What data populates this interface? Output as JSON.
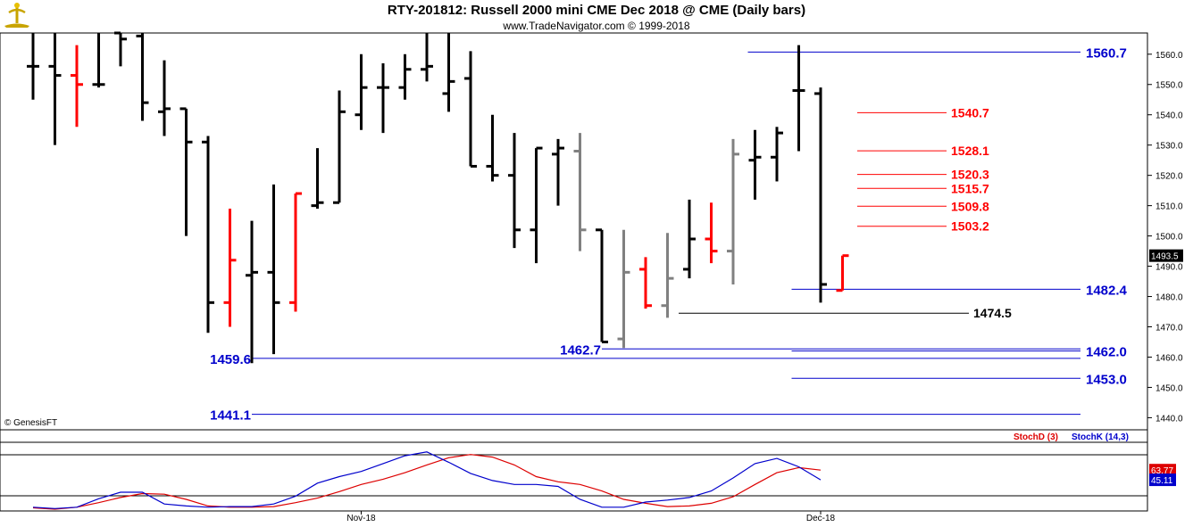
{
  "header": {
    "title": "RTY-201812:  Russell 2000 mini CME Dec 2018 @ CME  (Daily bars)",
    "subtitle": "www.TradeNavigator.com © 1999-2018",
    "copyright": "© GenesisFT"
  },
  "colors": {
    "up": "#ff0000",
    "down": "#000000",
    "neutral": "#808080",
    "level_blue": "#0000cc",
    "level_red": "#ff0000",
    "stoch_d": "#dd0000",
    "stoch_k": "#0000cc"
  },
  "chart_data": [
    {
      "type": "ohlc",
      "title": "RTY-201812:  Russell 2000 mini CME Dec 2018 @ CME  (Daily bars)",
      "ylim": [
        1436,
        1567
      ],
      "yticks": [
        "1440.0",
        "1450.0",
        "1460.0",
        "1470.0",
        "1480.0",
        "1490.0",
        "1500.0",
        "1510.0",
        "1520.0",
        "1530.0",
        "1540.0",
        "1550.0",
        "1560.0"
      ],
      "last_price_label": "1493.5",
      "last_price": 1493.5,
      "bars": [
        {
          "h": 1567,
          "l": 1545,
          "o": 1556,
          "c": 1556,
          "color": "down"
        },
        {
          "h": 1567,
          "l": 1530,
          "o": 1556,
          "c": 1553,
          "color": "down"
        },
        {
          "h": 1563,
          "l": 1536,
          "o": 1553,
          "c": 1550,
          "color": "up"
        },
        {
          "h": 1567,
          "l": 1549,
          "o": 1550,
          "c": 1550,
          "color": "down"
        },
        {
          "h": 1567,
          "l": 1556,
          "o": 1567,
          "c": 1565,
          "color": "down"
        },
        {
          "h": 1567,
          "l": 1538,
          "o": 1566,
          "c": 1544,
          "color": "down"
        },
        {
          "h": 1558,
          "l": 1533,
          "o": 1541,
          "c": 1542,
          "color": "down"
        },
        {
          "h": 1542,
          "l": 1500,
          "o": 1542,
          "c": 1531,
          "color": "down"
        },
        {
          "h": 1533,
          "l": 1468,
          "o": 1531,
          "c": 1478,
          "color": "down"
        },
        {
          "h": 1509,
          "l": 1470,
          "o": 1478,
          "c": 1492,
          "color": "up"
        },
        {
          "h": 1505,
          "l": 1458,
          "o": 1487,
          "c": 1488,
          "color": "down"
        },
        {
          "h": 1517,
          "l": 1461,
          "o": 1488,
          "c": 1478,
          "color": "down"
        },
        {
          "h": 1514,
          "l": 1475,
          "o": 1478,
          "c": 1514,
          "color": "up"
        },
        {
          "h": 1529,
          "l": 1509,
          "o": 1510,
          "c": 1511,
          "color": "down"
        },
        {
          "h": 1548,
          "l": 1511,
          "o": 1511,
          "c": 1541,
          "color": "down"
        },
        {
          "h": 1560,
          "l": 1535,
          "o": 1540,
          "c": 1549,
          "color": "down"
        },
        {
          "h": 1557,
          "l": 1534,
          "o": 1549,
          "c": 1549,
          "color": "down"
        },
        {
          "h": 1560,
          "l": 1545,
          "o": 1549,
          "c": 1555,
          "color": "down"
        },
        {
          "h": 1567,
          "l": 1551,
          "o": 1555,
          "c": 1556,
          "color": "down"
        },
        {
          "h": 1567,
          "l": 1541,
          "o": 1547,
          "c": 1551,
          "color": "down"
        },
        {
          "h": 1561,
          "l": 1523,
          "o": 1552,
          "c": 1523,
          "color": "down"
        },
        {
          "h": 1540,
          "l": 1518,
          "o": 1523,
          "c": 1520,
          "color": "down"
        },
        {
          "h": 1534,
          "l": 1496,
          "o": 1520,
          "c": 1502,
          "color": "down"
        },
        {
          "h": 1529,
          "l": 1491,
          "o": 1502,
          "c": 1529,
          "color": "down"
        },
        {
          "h": 1532,
          "l": 1510,
          "o": 1527,
          "c": 1529,
          "color": "down"
        },
        {
          "h": 1534,
          "l": 1495,
          "o": 1528,
          "c": 1502,
          "color": "neutral"
        },
        {
          "h": 1502,
          "l": 1465,
          "o": 1502,
          "c": 1465,
          "color": "down"
        },
        {
          "h": 1502,
          "l": 1463,
          "o": 1466,
          "c": 1488,
          "color": "neutral"
        },
        {
          "h": 1493,
          "l": 1476,
          "o": 1489,
          "c": 1477,
          "color": "up"
        },
        {
          "h": 1501,
          "l": 1473,
          "o": 1477,
          "c": 1486,
          "color": "neutral"
        },
        {
          "h": 1512,
          "l": 1486,
          "o": 1489,
          "c": 1499,
          "color": "down"
        },
        {
          "h": 1511,
          "l": 1491,
          "o": 1499,
          "c": 1495,
          "color": "up"
        },
        {
          "h": 1532,
          "l": 1484,
          "o": 1495,
          "c": 1527,
          "color": "neutral"
        },
        {
          "h": 1535,
          "l": 1512,
          "o": 1525,
          "c": 1526,
          "color": "down"
        },
        {
          "h": 1536,
          "l": 1518,
          "o": 1526,
          "c": 1534,
          "color": "down"
        },
        {
          "h": 1563,
          "l": 1528,
          "o": 1548,
          "c": 1548,
          "color": "down"
        },
        {
          "h": 1549,
          "l": 1478,
          "o": 1547,
          "c": 1484,
          "color": "down"
        },
        {
          "h": 1493.5,
          "l": 1482,
          "o": 1482,
          "c": 1493.5,
          "color": "up"
        }
      ],
      "levels_blue": [
        {
          "value": 1560.7,
          "label": "1560.7",
          "x0_bar": 33,
          "x1_bar": "edge",
          "label_side": "right"
        },
        {
          "value": 1482.4,
          "label": "1482.4",
          "x0_bar": 35,
          "x1_bar": "edge",
          "label_side": "right"
        },
        {
          "value": 1462.0,
          "label": "1462.0",
          "x0_bar": 35,
          "x1_bar": "edge",
          "label_side": "right"
        },
        {
          "value": 1453.0,
          "label": "1453.0",
          "x0_bar": 35,
          "x1_bar": "edge",
          "label_side": "right"
        },
        {
          "value": 1462.7,
          "label": "1462.7",
          "x0_bar": 26,
          "x1_bar": "edge",
          "label_side": "left"
        },
        {
          "value": 1459.6,
          "label": "1459.6",
          "x0_bar": 10,
          "x1_bar": "edge",
          "label_side": "left"
        },
        {
          "value": 1441.1,
          "label": "1441.1",
          "x0_bar": 10,
          "x1_bar": "edge",
          "label_side": "left"
        }
      ],
      "levels_red": [
        {
          "value": 1540.7,
          "label": "1540.7"
        },
        {
          "value": 1528.1,
          "label": "1528.1"
        },
        {
          "value": 1520.3,
          "label": "1520.3"
        },
        {
          "value": 1515.7,
          "label": "1515.7"
        },
        {
          "value": 1509.8,
          "label": "1509.8"
        },
        {
          "value": 1503.2,
          "label": "1503.2"
        }
      ],
      "level_black": {
        "value": 1474.5,
        "label": "1474.5"
      },
      "x_labels": [
        {
          "label": "Nov-18",
          "bar": 15
        },
        {
          "label": "Dec-18",
          "bar": 36
        }
      ]
    },
    {
      "type": "line",
      "title": "",
      "legend": [
        "StochD (3)",
        "StochK (14,3)"
      ],
      "ylim": [
        0,
        100
      ],
      "series": [
        {
          "name": "StochD (3)",
          "color": "#dd0000",
          "last_label": "63.77",
          "values": [
            2,
            0,
            3,
            10,
            18,
            24,
            23,
            15,
            5,
            3,
            3,
            4,
            10,
            17,
            27,
            38,
            46,
            56,
            68,
            79,
            84,
            80,
            68,
            50,
            42,
            38,
            28,
            15,
            9,
            4,
            5,
            9,
            19,
            38,
            56,
            63.8,
            60
          ]
        },
        {
          "name": "StochK (14,3)",
          "color": "#0000cc",
          "last_label": "45.11",
          "values": [
            3,
            1,
            3,
            16,
            26,
            26,
            8,
            5,
            3,
            4,
            4,
            8,
            20,
            40,
            50,
            58,
            70,
            82,
            88,
            72,
            55,
            44,
            38,
            38,
            35,
            15,
            3,
            3,
            11,
            14,
            18,
            28,
            48,
            70,
            78,
            65,
            45.1
          ]
        }
      ]
    }
  ]
}
